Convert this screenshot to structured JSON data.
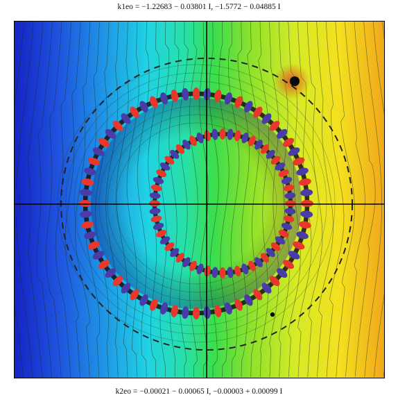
{
  "captions": {
    "top": "k1eo = −1.22683 − 0.03801 I,  −1.5772 − 0.04885 I",
    "bottom": "k2eo = −0.00021 − 0.00065 I,  −0.00003 + 0.00099 I"
  },
  "colors": {
    "ring_red": "#e8372c",
    "ring_blue": "#4a3ca8",
    "contour": "#1a2a1a",
    "dashed_circle": "#222222",
    "axis": "#000000"
  }
}
